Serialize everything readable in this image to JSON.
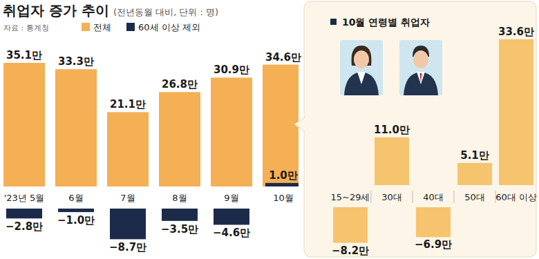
{
  "chart_data": [
    {
      "type": "bar",
      "title": "취업자 증가 추이",
      "subtitle": "(전년동월 대비, 단위 : 명)",
      "source": "자료 : 통계청",
      "categories": [
        "'23년 5월",
        "6월",
        "7월",
        "8월",
        "9월",
        "10월"
      ],
      "series": [
        {
          "name": "전체",
          "color": "#F5AF55",
          "values": [
            35.1,
            33.3,
            21.1,
            26.8,
            30.9,
            34.6
          ],
          "value_labels": [
            "35.1만",
            "33.3만",
            "21.1만",
            "26.8만",
            "30.9만",
            "34.6만"
          ]
        },
        {
          "name": "60세 이상 제외",
          "color": "#1C2B4A",
          "values": [
            -2.8,
            -1.0,
            -8.7,
            -3.5,
            -4.6,
            1.0
          ],
          "value_labels": [
            "−2.8만",
            "−1.0만",
            "−8.7만",
            "−3.5만",
            "−4.6만",
            "1.0만"
          ]
        }
      ],
      "ylim": [
        -10,
        40
      ],
      "data_labels": true,
      "tick_labels": "x",
      "legend": "top"
    },
    {
      "type": "bar",
      "title": "10월 연령별 취업자",
      "categories": [
        "15~29세",
        "30대",
        "40대",
        "50대",
        "60대 이상"
      ],
      "values": [
        -8.2,
        11.0,
        -6.9,
        5.1,
        33.6
      ],
      "value_labels": [
        "−8.2만",
        "11.0만",
        "−6.9만",
        "5.1만",
        "33.6만"
      ],
      "color": "#F6C46E",
      "ylim": [
        -10,
        35
      ],
      "data_labels": true,
      "tick_labels": "x"
    }
  ]
}
